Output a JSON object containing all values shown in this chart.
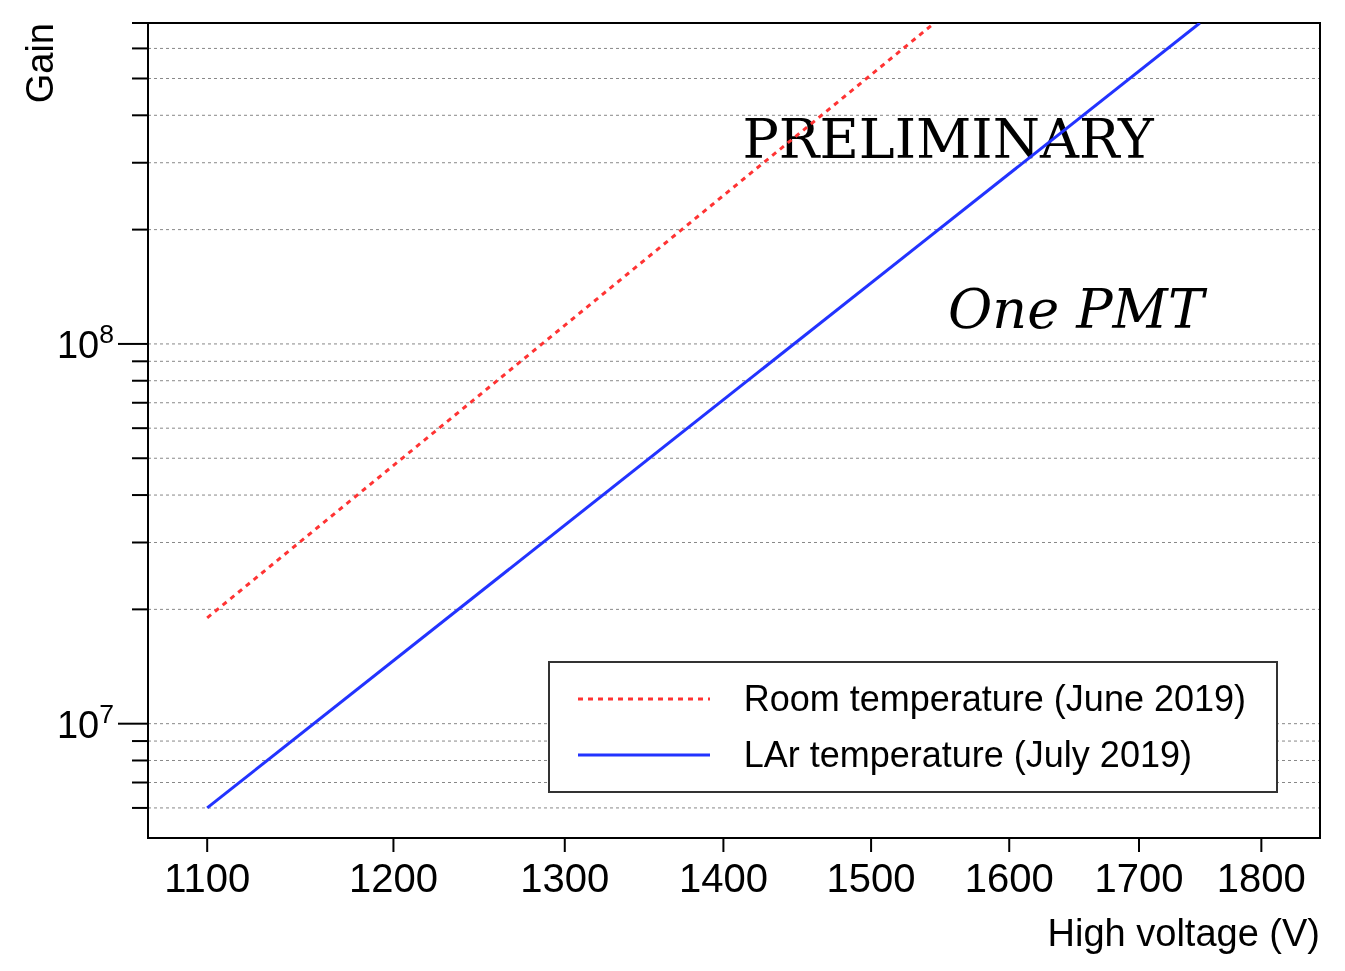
{
  "chart_data": {
    "type": "line",
    "xlabel": "High voltage (V)",
    "ylabel": "Gain",
    "log": "xy",
    "xlim": [
      1070,
      1850
    ],
    "xticks": [
      1100,
      1200,
      1300,
      1400,
      1500,
      1600,
      1700,
      1800
    ],
    "ylim": [
      5000000,
      700000000
    ],
    "yticks": [
      {
        "value": 6000000,
        "label": null
      },
      {
        "value": 7000000,
        "label": null
      },
      {
        "value": 8000000,
        "label": null
      },
      {
        "value": 9000000,
        "label": null
      },
      {
        "value": 10000000,
        "label": "10$^{7}$"
      },
      {
        "value": 20000000,
        "label": null
      },
      {
        "value": 30000000,
        "label": null
      },
      {
        "value": 40000000,
        "label": null
      },
      {
        "value": 50000000,
        "label": null
      },
      {
        "value": 60000000,
        "label": null
      },
      {
        "value": 70000000,
        "label": null
      },
      {
        "value": 80000000,
        "label": null
      },
      {
        "value": 90000000,
        "label": null
      },
      {
        "value": 100000000,
        "label": "10$^{8}$"
      },
      {
        "value": 200000000,
        "label": null
      },
      {
        "value": 300000000,
        "label": null
      },
      {
        "value": 400000000,
        "label": null
      },
      {
        "value": 500000000,
        "label": null
      },
      {
        "value": 600000000,
        "label": null
      },
      {
        "value": 700000000,
        "label": null
      }
    ],
    "grid": "y",
    "legend": "bottom right",
    "marker": "none",
    "series": [
      {
        "name": "Room temperature (June 2019)",
        "color": "#ff3333",
        "line_style": "dotted",
        "x": [
          1100,
          1545
        ],
        "values": [
          19000000,
          700000000
        ]
      },
      {
        "name": "LAr temperature (July 2019)",
        "color": "#2233ff",
        "line_style": "solid",
        "x": [
          1100,
          1749
        ],
        "values": [
          6000000,
          700000000
        ]
      }
    ],
    "annotations": [
      "PRELIMINARY",
      "One PMT"
    ]
  }
}
